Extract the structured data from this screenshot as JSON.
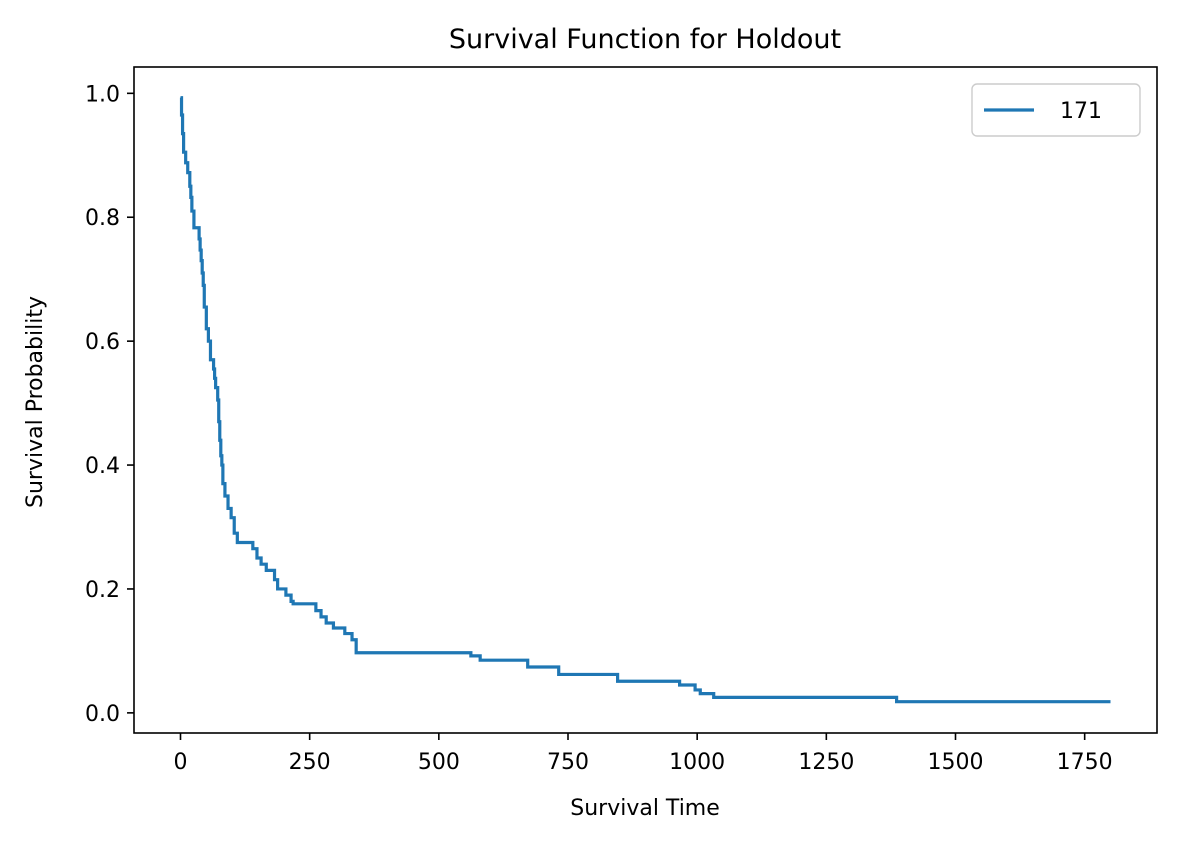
{
  "chart_data": {
    "type": "line",
    "title": "Survival Function for Holdout",
    "xlabel": "Survival Time",
    "ylabel": "Survival Probability",
    "xlim": [
      -90,
      1890
    ],
    "ylim": [
      -0.0325,
      1.0425
    ],
    "xticks": [
      0,
      250,
      500,
      750,
      1000,
      1250,
      1500,
      1750
    ],
    "yticks": [
      0.0,
      0.2,
      0.4,
      0.6,
      0.8,
      1.0
    ],
    "xtick_labels": [
      "0",
      "250",
      "500",
      "750",
      "1000",
      "1250",
      "1500",
      "1750"
    ],
    "ytick_labels": [
      "0.0",
      "0.2",
      "0.4",
      "0.6",
      "0.8",
      "1.0"
    ],
    "legend_position": "top-right",
    "grid": false,
    "series": [
      {
        "name": "171",
        "color": "#1f77b4",
        "step": true,
        "points": [
          [
            0,
            0.993
          ],
          [
            2,
            0.965
          ],
          [
            4,
            0.935
          ],
          [
            6,
            0.905
          ],
          [
            10,
            0.888
          ],
          [
            14,
            0.872
          ],
          [
            18,
            0.85
          ],
          [
            20,
            0.832
          ],
          [
            22,
            0.81
          ],
          [
            26,
            0.783
          ],
          [
            36,
            0.765
          ],
          [
            38,
            0.747
          ],
          [
            40,
            0.73
          ],
          [
            42,
            0.71
          ],
          [
            44,
            0.69
          ],
          [
            46,
            0.655
          ],
          [
            50,
            0.62
          ],
          [
            54,
            0.6
          ],
          [
            58,
            0.57
          ],
          [
            64,
            0.555
          ],
          [
            66,
            0.54
          ],
          [
            68,
            0.525
          ],
          [
            72,
            0.505
          ],
          [
            74,
            0.47
          ],
          [
            76,
            0.44
          ],
          [
            78,
            0.415
          ],
          [
            80,
            0.4
          ],
          [
            82,
            0.37
          ],
          [
            86,
            0.35
          ],
          [
            92,
            0.33
          ],
          [
            98,
            0.315
          ],
          [
            104,
            0.29
          ],
          [
            110,
            0.275
          ],
          [
            140,
            0.265
          ],
          [
            148,
            0.25
          ],
          [
            156,
            0.24
          ],
          [
            166,
            0.23
          ],
          [
            182,
            0.215
          ],
          [
            188,
            0.2
          ],
          [
            204,
            0.19
          ],
          [
            214,
            0.18
          ],
          [
            218,
            0.176
          ],
          [
            262,
            0.165
          ],
          [
            272,
            0.155
          ],
          [
            282,
            0.145
          ],
          [
            296,
            0.137
          ],
          [
            318,
            0.128
          ],
          [
            332,
            0.118
          ],
          [
            340,
            0.097
          ],
          [
            548,
            0.097
          ],
          [
            562,
            0.092
          ],
          [
            580,
            0.085
          ],
          [
            672,
            0.074
          ],
          [
            732,
            0.062
          ],
          [
            846,
            0.051
          ],
          [
            936,
            0.051
          ],
          [
            966,
            0.045
          ],
          [
            996,
            0.037
          ],
          [
            1006,
            0.031
          ],
          [
            1032,
            0.025
          ],
          [
            1320,
            0.025
          ],
          [
            1386,
            0.018
          ],
          [
            1800,
            0.018
          ]
        ]
      }
    ]
  }
}
